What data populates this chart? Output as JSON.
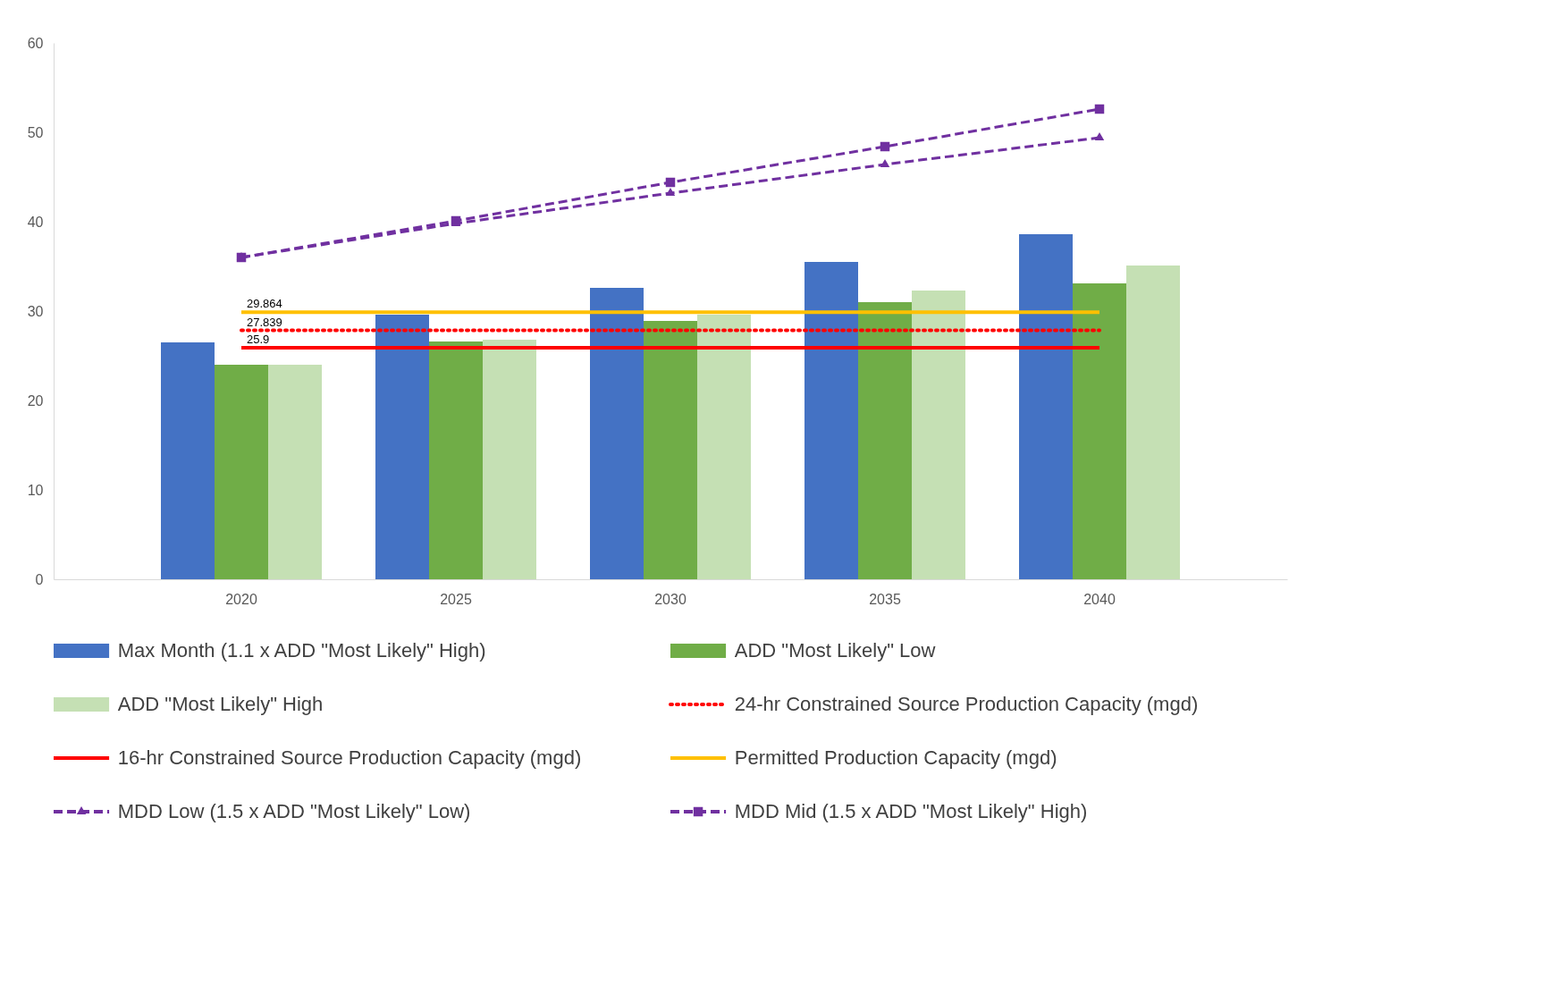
{
  "chart_data": {
    "type": "bar",
    "categories": [
      "2020",
      "2025",
      "2030",
      "2035",
      "2040"
    ],
    "ylim": [
      0,
      60
    ],
    "yticks": [
      0,
      10,
      20,
      30,
      40,
      50,
      60
    ],
    "grid": false,
    "legend": "bottom",
    "series": [
      {
        "name": "Max Month (1.1 x ADD \"Most Likely\" High)",
        "color": "#4472c4",
        "values": [
          26.5,
          29.6,
          32.6,
          35.5,
          38.6
        ]
      },
      {
        "name": "ADD \"Most Likely\" Low",
        "color": "#70ad47",
        "values": [
          24.0,
          26.6,
          28.9,
          31.0,
          33.1
        ]
      },
      {
        "name": "ADD \"Most Likely\" High",
        "color": "#c5e0b4",
        "values": [
          24.0,
          26.8,
          29.6,
          32.3,
          35.1
        ]
      },
      {
        "name": "24-hr Constrained Source Production Capacity (mgd)",
        "type": "line",
        "color": "#ff0000",
        "line_style": "dotted",
        "values": [
          27.839,
          27.839,
          27.839,
          27.839,
          27.839
        ],
        "value_labels": [
          "27.839",
          null,
          null,
          null,
          null
        ]
      },
      {
        "name": "16-hr Constrained Source Production Capacity (mgd)",
        "type": "line",
        "color": "#ff0000",
        "line_style": "solid",
        "values": [
          25.9,
          25.9,
          25.9,
          25.9,
          25.9
        ],
        "value_labels": [
          "25.9",
          null,
          null,
          null,
          null
        ]
      },
      {
        "name": "Permitted Production Capacity (mgd)",
        "type": "line",
        "color": "#ffc000",
        "line_style": "solid",
        "values": [
          29.864,
          29.864,
          29.864,
          29.864,
          29.864
        ],
        "value_labels": [
          "29.864",
          null,
          null,
          null,
          null
        ]
      },
      {
        "name": "MDD Low (1.5 x ADD \"Most Likely\" Low)",
        "type": "line",
        "color": "#7030a0",
        "line_style": "dashed",
        "marker": "triangle",
        "values": [
          36.0,
          39.8,
          43.2,
          46.4,
          49.4
        ]
      },
      {
        "name": "MDD Mid (1.5 x ADD \"Most Likely\" High)",
        "type": "line",
        "color": "#7030a0",
        "line_style": "dashed",
        "marker": "square",
        "values": [
          36.0,
          40.1,
          44.4,
          48.4,
          52.6
        ]
      }
    ]
  }
}
